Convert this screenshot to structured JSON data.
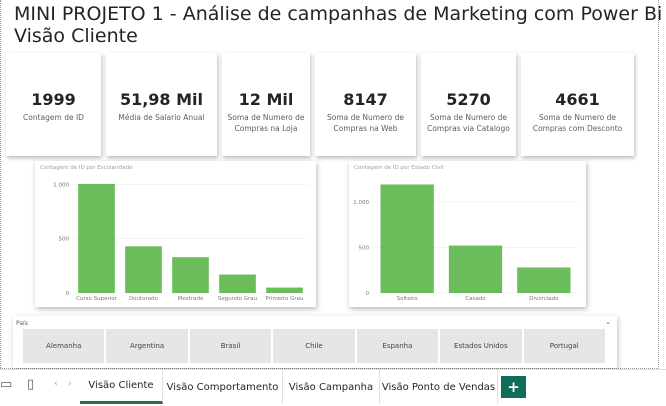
{
  "titles": {
    "line1": "MINI PROJETO 1 - Análise de campanhas de Marketing com Power Bi",
    "line2": "Visão Cliente"
  },
  "cards": [
    {
      "value": "1999",
      "label": "Contagem de ID"
    },
    {
      "value": "51,98 Mil",
      "label": "Média de Salario Anual"
    },
    {
      "value": "12 Mil",
      "label": "Soma de Numero de Compras na Loja"
    },
    {
      "value": "8147",
      "label": "Soma de Numero de Compras na Web"
    },
    {
      "value": "5270",
      "label": "Soma de Numero de Compras via Catalogo"
    },
    {
      "value": "4661",
      "label": "Soma de Numero de Compras com Desconto"
    }
  ],
  "chart_data": [
    {
      "type": "bar",
      "title": "Contagem de ID por Escolaridade",
      "categories": [
        "Curso Superior",
        "Doutorado",
        "Mestrado",
        "Segundo Grau",
        "Primeiro Grau"
      ],
      "values": [
        1005,
        430,
        330,
        170,
        50
      ],
      "yticks": [
        "1.000",
        "500",
        "0"
      ],
      "ylim": [
        0,
        1050
      ],
      "color": "#6bbc5a"
    },
    {
      "type": "bar",
      "title": "Contagem de ID por Estado Civil",
      "categories": [
        "Solteiro",
        "Casado",
        "Divorciado"
      ],
      "values": [
        1190,
        520,
        280
      ],
      "yticks": [
        "1.000",
        "500",
        "0"
      ],
      "ylim": [
        0,
        1250
      ],
      "color": "#6bbc5a"
    }
  ],
  "slicer": {
    "title": "País",
    "items": [
      "Alemanha",
      "Argentina",
      "Brasil",
      "Chile",
      "Espanha",
      "Estados Unidos",
      "Portugal"
    ]
  },
  "tabs": [
    "Visão Cliente",
    "Visão Comportamento",
    "Visão Campanha",
    "Visão Ponto de Vendas"
  ],
  "add_tab": "+"
}
